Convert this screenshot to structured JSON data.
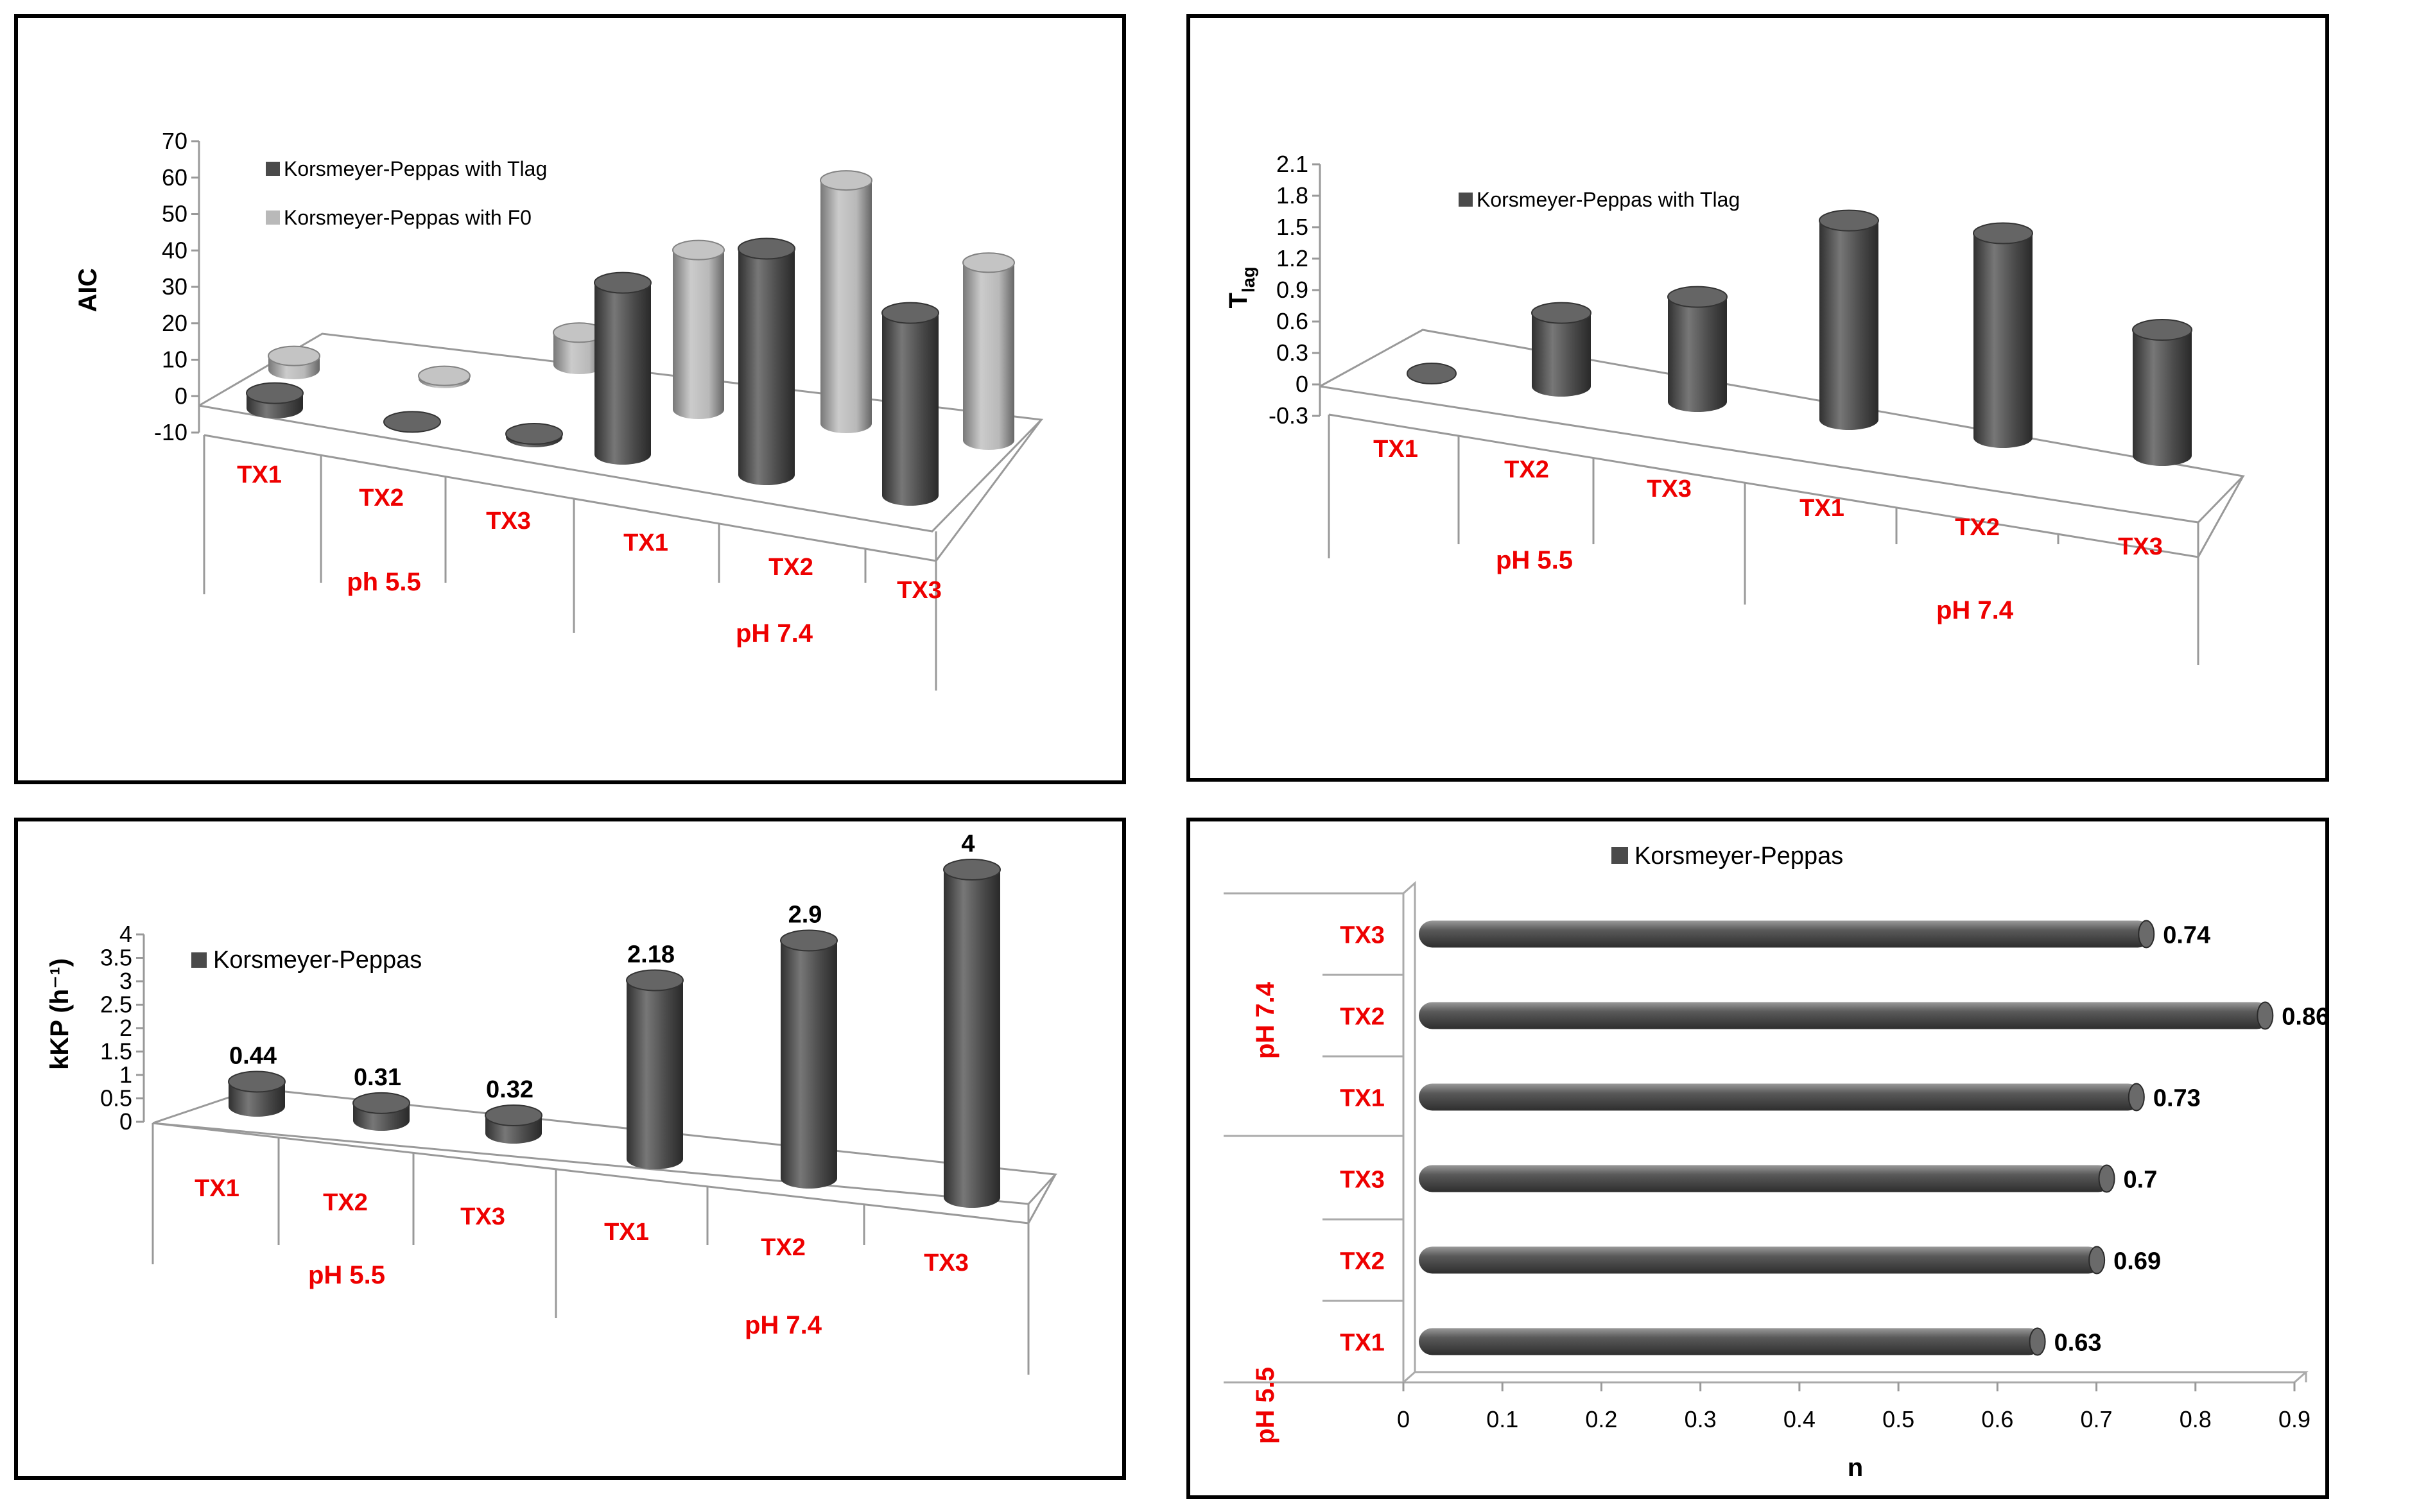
{
  "colors": {
    "dark": "#4a4a4a",
    "light": "#b9b9b9",
    "accent": "#ee0000"
  },
  "chart_data": [
    {
      "id": "aic",
      "type": "bar",
      "style": "3d-cylinder",
      "ylabel": "AIC",
      "ylim": [
        -10,
        70
      ],
      "yticks": [
        "70",
        "60",
        "50",
        "40",
        "30",
        "20",
        "10",
        "0",
        "-10"
      ],
      "categories": [
        "TX1",
        "TX2",
        "TX3",
        "TX1",
        "TX2",
        "TX3"
      ],
      "groups": [
        "ph 5.5",
        "pH 7.4"
      ],
      "series": [
        {
          "name": "Korsmeyer-Peppas with Tlag",
          "values": [
            2,
            -2,
            -3,
            45,
            60,
            48
          ]
        },
        {
          "name": "Korsmeyer-Peppas with F0",
          "values": [
            2,
            -1,
            7,
            42,
            65,
            47
          ]
        }
      ]
    },
    {
      "id": "tlag",
      "type": "bar",
      "style": "3d-cylinder",
      "ylabel": "T",
      "ylabel_sub": "lag",
      "ylim": [
        -0.3,
        2.1
      ],
      "yticks": [
        "2.1",
        "1.8",
        "1.5",
        "1.2",
        "0.9",
        "0.6",
        "0.3",
        "0",
        "-0.3"
      ],
      "categories": [
        "TX1",
        "TX2",
        "TX3",
        "TX1",
        "TX2",
        "TX3"
      ],
      "groups": [
        "pH 5.5",
        "pH 7.4"
      ],
      "series": [
        {
          "name": "Korsmeyer-Peppas with Tlag",
          "values": [
            0,
            0.7,
            1.0,
            1.9,
            1.95,
            1.2
          ]
        }
      ]
    },
    {
      "id": "kkp",
      "type": "bar",
      "style": "3d-cylinder",
      "ylabel": "kKP (h⁻¹)",
      "ylim": [
        0,
        4
      ],
      "yticks": [
        "4",
        "3.5",
        "3",
        "2.5",
        "2",
        "1.5",
        "1",
        "0.5",
        "0"
      ],
      "categories": [
        "TX1",
        "TX2",
        "TX3",
        "TX1",
        "TX2",
        "TX3"
      ],
      "groups": [
        "pH 5.5",
        "pH 7.4"
      ],
      "series": [
        {
          "name": "Korsmeyer-Peppas",
          "values": [
            0.44,
            0.31,
            0.32,
            2.18,
            2.9,
            4
          ]
        }
      ],
      "data_labels": [
        "0.44",
        "0.31",
        "0.32",
        "2.18",
        "2.9",
        "4"
      ]
    },
    {
      "id": "n",
      "type": "bar",
      "orientation": "horizontal",
      "xlabel": "n",
      "xlim": [
        0,
        0.9
      ],
      "xticks": [
        "0",
        "0.1",
        "0.2",
        "0.3",
        "0.4",
        "0.5",
        "0.6",
        "0.7",
        "0.8",
        "0.9"
      ],
      "categories": [
        "TX1",
        "TX2",
        "TX3",
        "TX1",
        "TX2",
        "TX3"
      ],
      "groups": [
        "pH 5.5",
        "pH 7.4"
      ],
      "series": [
        {
          "name": "Korsmeyer-Peppas",
          "values": [
            0.63,
            0.69,
            0.7,
            0.73,
            0.86,
            0.74
          ]
        }
      ],
      "data_labels": [
        "0.63",
        "0.69",
        "0.7",
        "0.73",
        "0.86",
        "0.74"
      ]
    }
  ]
}
